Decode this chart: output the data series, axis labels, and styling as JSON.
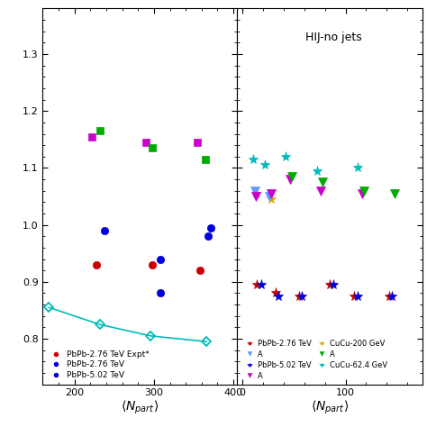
{
  "left_panel": {
    "xlim": [
      160,
      405
    ],
    "ylim": [
      0.72,
      1.38
    ],
    "series": {
      "red_circles": {
        "x": [
          228,
          298,
          358
        ],
        "y": [
          0.93,
          0.93,
          0.92
        ],
        "color": "#cc0000",
        "marker": "o",
        "markersize": 6,
        "linestyle": "none"
      },
      "blue_circles_1": {
        "x": [
          238,
          308
        ],
        "y": [
          0.99,
          0.94
        ],
        "color": "#0000dd",
        "marker": "o",
        "markersize": 6,
        "linestyle": "none"
      },
      "blue_circles_2": {
        "x": [
          308,
          368
        ],
        "y": [
          0.88,
          0.98
        ],
        "color": "#0000dd",
        "marker": "o",
        "markersize": 6,
        "linestyle": "none"
      },
      "blue_circle_right": {
        "x": [
          372
        ],
        "y": [
          0.995
        ],
        "color": "#0000dd",
        "marker": "o",
        "markersize": 6,
        "linestyle": "none"
      },
      "magenta_squares": {
        "x": [
          222,
          290,
          355
        ],
        "y": [
          1.155,
          1.145,
          1.145
        ],
        "color": "#cc00cc",
        "marker": "s",
        "markersize": 6,
        "linestyle": "none"
      },
      "green_squares": {
        "x": [
          232,
          298,
          365
        ],
        "y": [
          1.165,
          1.135,
          1.115
        ],
        "color": "#00aa00",
        "marker": "s",
        "markersize": 6,
        "linestyle": "none"
      },
      "cyan_line": {
        "x": [
          168,
          232,
          296,
          366
        ],
        "y": [
          0.855,
          0.825,
          0.805,
          0.795
        ],
        "color": "#00bbbb",
        "marker": "D",
        "markersize": 5,
        "linestyle": "-",
        "linewidth": 1.2,
        "open": true
      }
    },
    "xticks": [
      200,
      300,
      400
    ],
    "yticks": [
      0.8,
      0.9,
      1.0,
      1.1,
      1.2,
      1.3
    ],
    "legend": [
      {
        "label": "PbPb-2.76 TeV Expt*",
        "color": "#cc0000",
        "marker": "o"
      },
      {
        "label": "PbPb-2.76 TeV",
        "color": "#0000dd",
        "marker": "o"
      },
      {
        "label": "PbPb-5.02 TeV",
        "color": "#0000dd",
        "marker": "o"
      }
    ]
  },
  "right_panel": {
    "xlim": [
      -5,
      175
    ],
    "ylim": [
      0.72,
      1.38
    ],
    "title": "HIJ-no jets",
    "series": {
      "PbPb276_star": {
        "x": [
          14,
          32,
          55,
          85,
          108,
          142
        ],
        "y": [
          0.895,
          0.88,
          0.875,
          0.895,
          0.875,
          0.875
        ],
        "color": "#cc0000",
        "marker": "*",
        "markersize": 8,
        "linestyle": "none"
      },
      "PbPb502_star": {
        "x": [
          18,
          35,
          58,
          88,
          112,
          145
        ],
        "y": [
          0.895,
          0.875,
          0.875,
          0.895,
          0.875,
          0.875
        ],
        "color": "#0000dd",
        "marker": "*",
        "markersize": 8,
        "linestyle": "none"
      },
      "CuCu200_star": {
        "x": [
          14,
          28
        ],
        "y": [
          1.055,
          1.045
        ],
        "color": "#ddaa00",
        "marker": "*",
        "markersize": 8,
        "linestyle": "none"
      },
      "CuCu624_star": {
        "x": [
          10,
          22,
          42,
          72,
          112
        ],
        "y": [
          1.115,
          1.105,
          1.12,
          1.095,
          1.1
        ],
        "color": "#00bbbb",
        "marker": "*",
        "markersize": 8,
        "linestyle": "none"
      },
      "tri_lightblue": {
        "x": [
          12,
          26
        ],
        "y": [
          1.06,
          1.05
        ],
        "color": "#6699ff",
        "marker": "v",
        "markersize": 7,
        "linestyle": "none"
      },
      "tri_magenta": {
        "x": [
          13,
          28,
          46,
          76,
          116
        ],
        "y": [
          1.05,
          1.055,
          1.08,
          1.06,
          1.055
        ],
        "color": "#cc00cc",
        "marker": "v",
        "markersize": 7,
        "linestyle": "none"
      },
      "tri_green": {
        "x": [
          48,
          78,
          118,
          148
        ],
        "y": [
          1.085,
          1.075,
          1.06,
          1.055
        ],
        "color": "#00aa00",
        "marker": "v",
        "markersize": 7,
        "linestyle": "none"
      }
    },
    "xticks": [
      0,
      100
    ],
    "legend": [
      {
        "label": "PbPb-2.76 TeV",
        "color": "#cc0000",
        "marker": "*"
      },
      {
        "label": "PbPb-5.02 TeV",
        "color": "#0000dd",
        "marker": "*"
      },
      {
        "label": "CuCu-200 GeV",
        "color": "#ddaa00",
        "marker": "*"
      },
      {
        "label": "CuCu-62.4 GeV",
        "color": "#00bbbb",
        "marker": "*"
      }
    ],
    "legend2": [
      {
        "label": "A",
        "color": "#6699ff",
        "marker": "v"
      },
      {
        "label": "A",
        "color": "#cc00cc",
        "marker": "v"
      },
      {
        "label": "A",
        "color": "#00aa00",
        "marker": "v"
      },
      {
        "label": "",
        "color": "#ffffff",
        "marker": "v"
      }
    ]
  },
  "figure_bgcolor": "#ffffff"
}
